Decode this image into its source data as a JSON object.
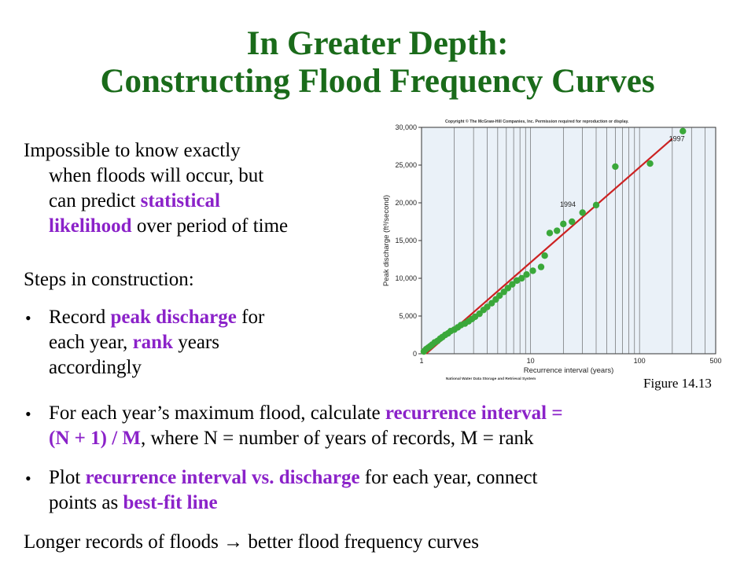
{
  "title": {
    "line1": "In Greater Depth:",
    "line2": "Constructing Flood Frequency Curves"
  },
  "intro": {
    "t1": "Impossible to know exactly",
    "t2": "when floods will occur, but",
    "t3a": "can predict ",
    "t3b": "statistical",
    "t4a": "likelihood",
    "t4b": " over period of time"
  },
  "steps_heading": "Steps in construction:",
  "bullets": [
    {
      "a": "Record ",
      "b": "peak discharge",
      "c": " for",
      "d": "each year, ",
      "e": "rank",
      "f": " years",
      "g": "accordingly"
    },
    {
      "a": "For each year’s maximum flood, calculate ",
      "b": "recurrence interval =",
      "c": "(N + 1) / M",
      "d": ", where N = number of years of records, M = rank"
    },
    {
      "a": "Plot ",
      "b": "recurrence interval vs. discharge",
      "c": " for each year, connect",
      "d": "points as ",
      "e": "best-fit line"
    }
  ],
  "conclusion": {
    "a": "Longer records of floods ",
    "arrow": "→",
    "b": " better flood frequency curves"
  },
  "figure_caption": "Figure 14.13",
  "chart_data": {
    "type": "scatter",
    "copyright": "Copyright © The McGraw-Hill Companies, Inc. Permission required for reproduction or display.",
    "xlabel": "Recurrence interval (years)",
    "ylabel": "Peak discharge (ft³/second)",
    "source": "National Water Data Storage and Retrieval System",
    "xscale": "log",
    "xlim": [
      1,
      500
    ],
    "ylim": [
      0,
      30000
    ],
    "xticks": [
      1,
      10,
      100,
      500
    ],
    "yticks": [
      0,
      5000,
      10000,
      15000,
      20000,
      25000,
      30000
    ],
    "ytick_labels": [
      "0",
      "5,000",
      "10,000",
      "15,000",
      "20,000",
      "25,000",
      "30,000"
    ],
    "grid": "vertical",
    "colors": {
      "points": "#3aa83a",
      "line": "#cc2222",
      "plot_bg": "#eaf1f8"
    },
    "fit_line": [
      [
        1.1,
        0
      ],
      [
        200,
        28500
      ]
    ],
    "annotations": [
      {
        "text": "1994",
        "x": 22,
        "y": 19500
      },
      {
        "text": "1997",
        "x": 220,
        "y": 28200
      }
    ],
    "points": [
      [
        1.05,
        300
      ],
      [
        1.1,
        600
      ],
      [
        1.15,
        800
      ],
      [
        1.2,
        1000
      ],
      [
        1.25,
        1200
      ],
      [
        1.32,
        1500
      ],
      [
        1.4,
        1700
      ],
      [
        1.48,
        2000
      ],
      [
        1.55,
        2200
      ],
      [
        1.65,
        2500
      ],
      [
        1.75,
        2700
      ],
      [
        1.85,
        3000
      ],
      [
        2.0,
        3200
      ],
      [
        2.15,
        3500
      ],
      [
        2.3,
        3800
      ],
      [
        2.5,
        4000
      ],
      [
        2.7,
        4300
      ],
      [
        2.9,
        4600
      ],
      [
        3.1,
        4900
      ],
      [
        3.4,
        5300
      ],
      [
        3.7,
        5800
      ],
      [
        4.0,
        6200
      ],
      [
        4.4,
        6700
      ],
      [
        4.8,
        7200
      ],
      [
        5.2,
        7700
      ],
      [
        5.7,
        8200
      ],
      [
        6.2,
        8700
      ],
      [
        6.8,
        9200
      ],
      [
        7.5,
        9700
      ],
      [
        8.3,
        10000
      ],
      [
        9.2,
        10500
      ],
      [
        10.5,
        11000
      ],
      [
        12.5,
        11500
      ],
      [
        13.5,
        13000
      ],
      [
        15,
        16000
      ],
      [
        17.5,
        16300
      ],
      [
        20,
        17200
      ],
      [
        24,
        17500
      ],
      [
        30,
        18700
      ],
      [
        40,
        19700
      ],
      [
        60,
        24800
      ],
      [
        125,
        25200
      ],
      [
        250,
        29500
      ]
    ]
  }
}
